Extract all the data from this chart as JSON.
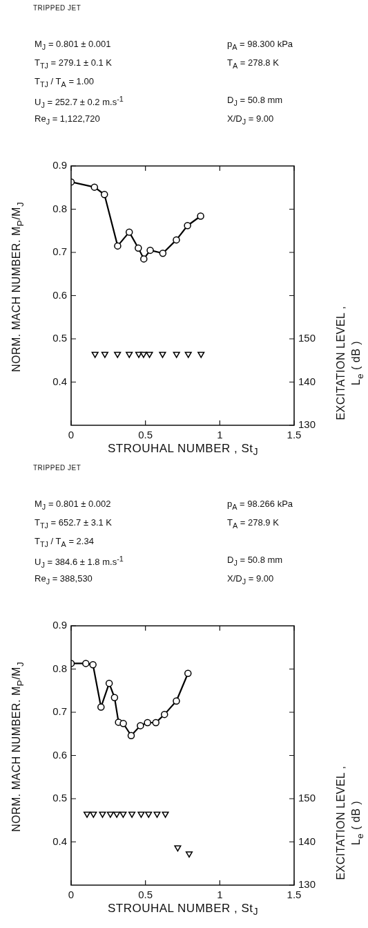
{
  "chart_data": [
    {
      "type": "line",
      "title": "TRIPPED JET",
      "annotations": [
        "M$_{J}$ = 0.801 ± 0.001",
        "T$_{TJ}$ = 279.1 ± 0.1 K",
        "T$_{TJ}$ / T$_{A}$ = 1.00",
        "U$_{J}$ = 252.7 ± 0.2 m.s$^{-1}$",
        "Re$_{J}$ = 1,122,720",
        "p$_{A}$ = 98.300 kPa",
        "T$_{A}$ = 278.8 K",
        "D$_{J}$ = 50.8 mm",
        "X/D$_{J}$ = 9.00"
      ],
      "xlabel": "STROUHAL NUMBER ,  St$_{J}$",
      "ylabel": "NORM. MACH NUMBER.  M$_{P}$/M$_{J}$",
      "y2label": "EXCITATION LEVEL ,\nL$_{e}$ ( dB )",
      "xlim": [
        0,
        1.5
      ],
      "xticks": [
        0,
        0.5,
        1,
        1.5
      ],
      "ylim": [
        0.3,
        0.9
      ],
      "yticks": [
        0.4,
        0.5,
        0.6,
        0.7,
        0.8,
        0.9
      ],
      "y2lim": [
        130,
        190
      ],
      "y2ticks": [
        130,
        140,
        150,
        {
          "value": 160,
          "label": null
        },
        {
          "value": 170,
          "label": null
        },
        {
          "value": 180,
          "label": null
        }
      ],
      "grid": false,
      "series": [
        {
          "type": "line",
          "color": "#000000",
          "marker": "circle",
          "line_style": "solid",
          "x": [
            0,
            0.157,
            0.224,
            0.313,
            0.391,
            0.452,
            0.489,
            0.532,
            0.617,
            0.708,
            0.783,
            0.871
          ],
          "values": [
            0.863,
            0.851,
            0.834,
            0.715,
            0.747,
            0.71,
            0.685,
            0.705,
            0.698,
            0.729,
            0.762,
            0.784
          ]
        },
        {
          "type": "scatter",
          "color": "#000000",
          "marker": "triangle",
          "axis": "y2",
          "x": [
            0.161,
            0.227,
            0.312,
            0.391,
            0.455,
            0.487,
            0.527,
            0.615,
            0.709,
            0.788,
            0.874
          ],
          "values": [
            146.5,
            146.5,
            146.5,
            146.5,
            146.5,
            146.5,
            146.5,
            146.5,
            146.5,
            146.5,
            146.5
          ]
        }
      ]
    },
    {
      "type": "line",
      "title": "TRIPPED JET",
      "annotations": [
        "M$_{J}$ = 0.801 ± 0.002",
        "T$_{TJ}$ = 652.7 ± 3.1 K",
        "T$_{TJ}$ / T$_{A}$ = 2.34",
        "U$_{J}$ = 384.6 ± 1.8 m.s$^{-1}$",
        "Re$_{J}$ = 388,530",
        "p$_{A}$ = 98.266 kPa",
        "T$_{A}$ = 278.9 K",
        "D$_{J}$ = 50.8 mm",
        "X/D$_{J}$ = 9.00"
      ],
      "xlabel": "STROUHAL NUMBER ,  St$_{J}$",
      "ylabel": "NORM. MACH NUMBER.  M$_{P}$/M$_{J}$",
      "y2label": "EXCITATION LEVEL ,\nL$_{e}$ ( dB )",
      "xlim": [
        0,
        1.5
      ],
      "xticks": [
        0,
        0.5,
        1,
        1.5
      ],
      "ylim": [
        0.3,
        0.9
      ],
      "yticks": [
        0.4,
        0.5,
        0.6,
        0.7,
        0.8,
        0.9
      ],
      "y2lim": [
        130,
        190
      ],
      "y2ticks": [
        130,
        140,
        150,
        {
          "value": 160,
          "label": null
        },
        {
          "value": 170,
          "label": null
        },
        {
          "value": 180,
          "label": null
        }
      ],
      "grid": false,
      "series": [
        {
          "type": "line",
          "color": "#000000",
          "marker": "circle",
          "line_style": "solid",
          "x": [
            0,
            0.099,
            0.147,
            0.201,
            0.256,
            0.292,
            0.319,
            0.351,
            0.404,
            0.466,
            0.514,
            0.57,
            0.628,
            0.708,
            0.786
          ],
          "values": [
            0.813,
            0.813,
            0.81,
            0.712,
            0.767,
            0.734,
            0.677,
            0.674,
            0.646,
            0.669,
            0.676,
            0.676,
            0.695,
            0.726,
            0.79
          ]
        },
        {
          "type": "scatter",
          "color": "#000000",
          "marker": "triangle",
          "axis": "y2",
          "x": [
            0.107,
            0.15,
            0.211,
            0.264,
            0.307,
            0.35,
            0.409,
            0.471,
            0.521,
            0.578,
            0.634,
            0.717,
            0.794
          ],
          "values": [
            146.5,
            146.5,
            146.5,
            146.5,
            146.5,
            146.5,
            146.5,
            146.5,
            146.5,
            146.5,
            146.5,
            138.7,
            137.3
          ]
        }
      ]
    }
  ]
}
